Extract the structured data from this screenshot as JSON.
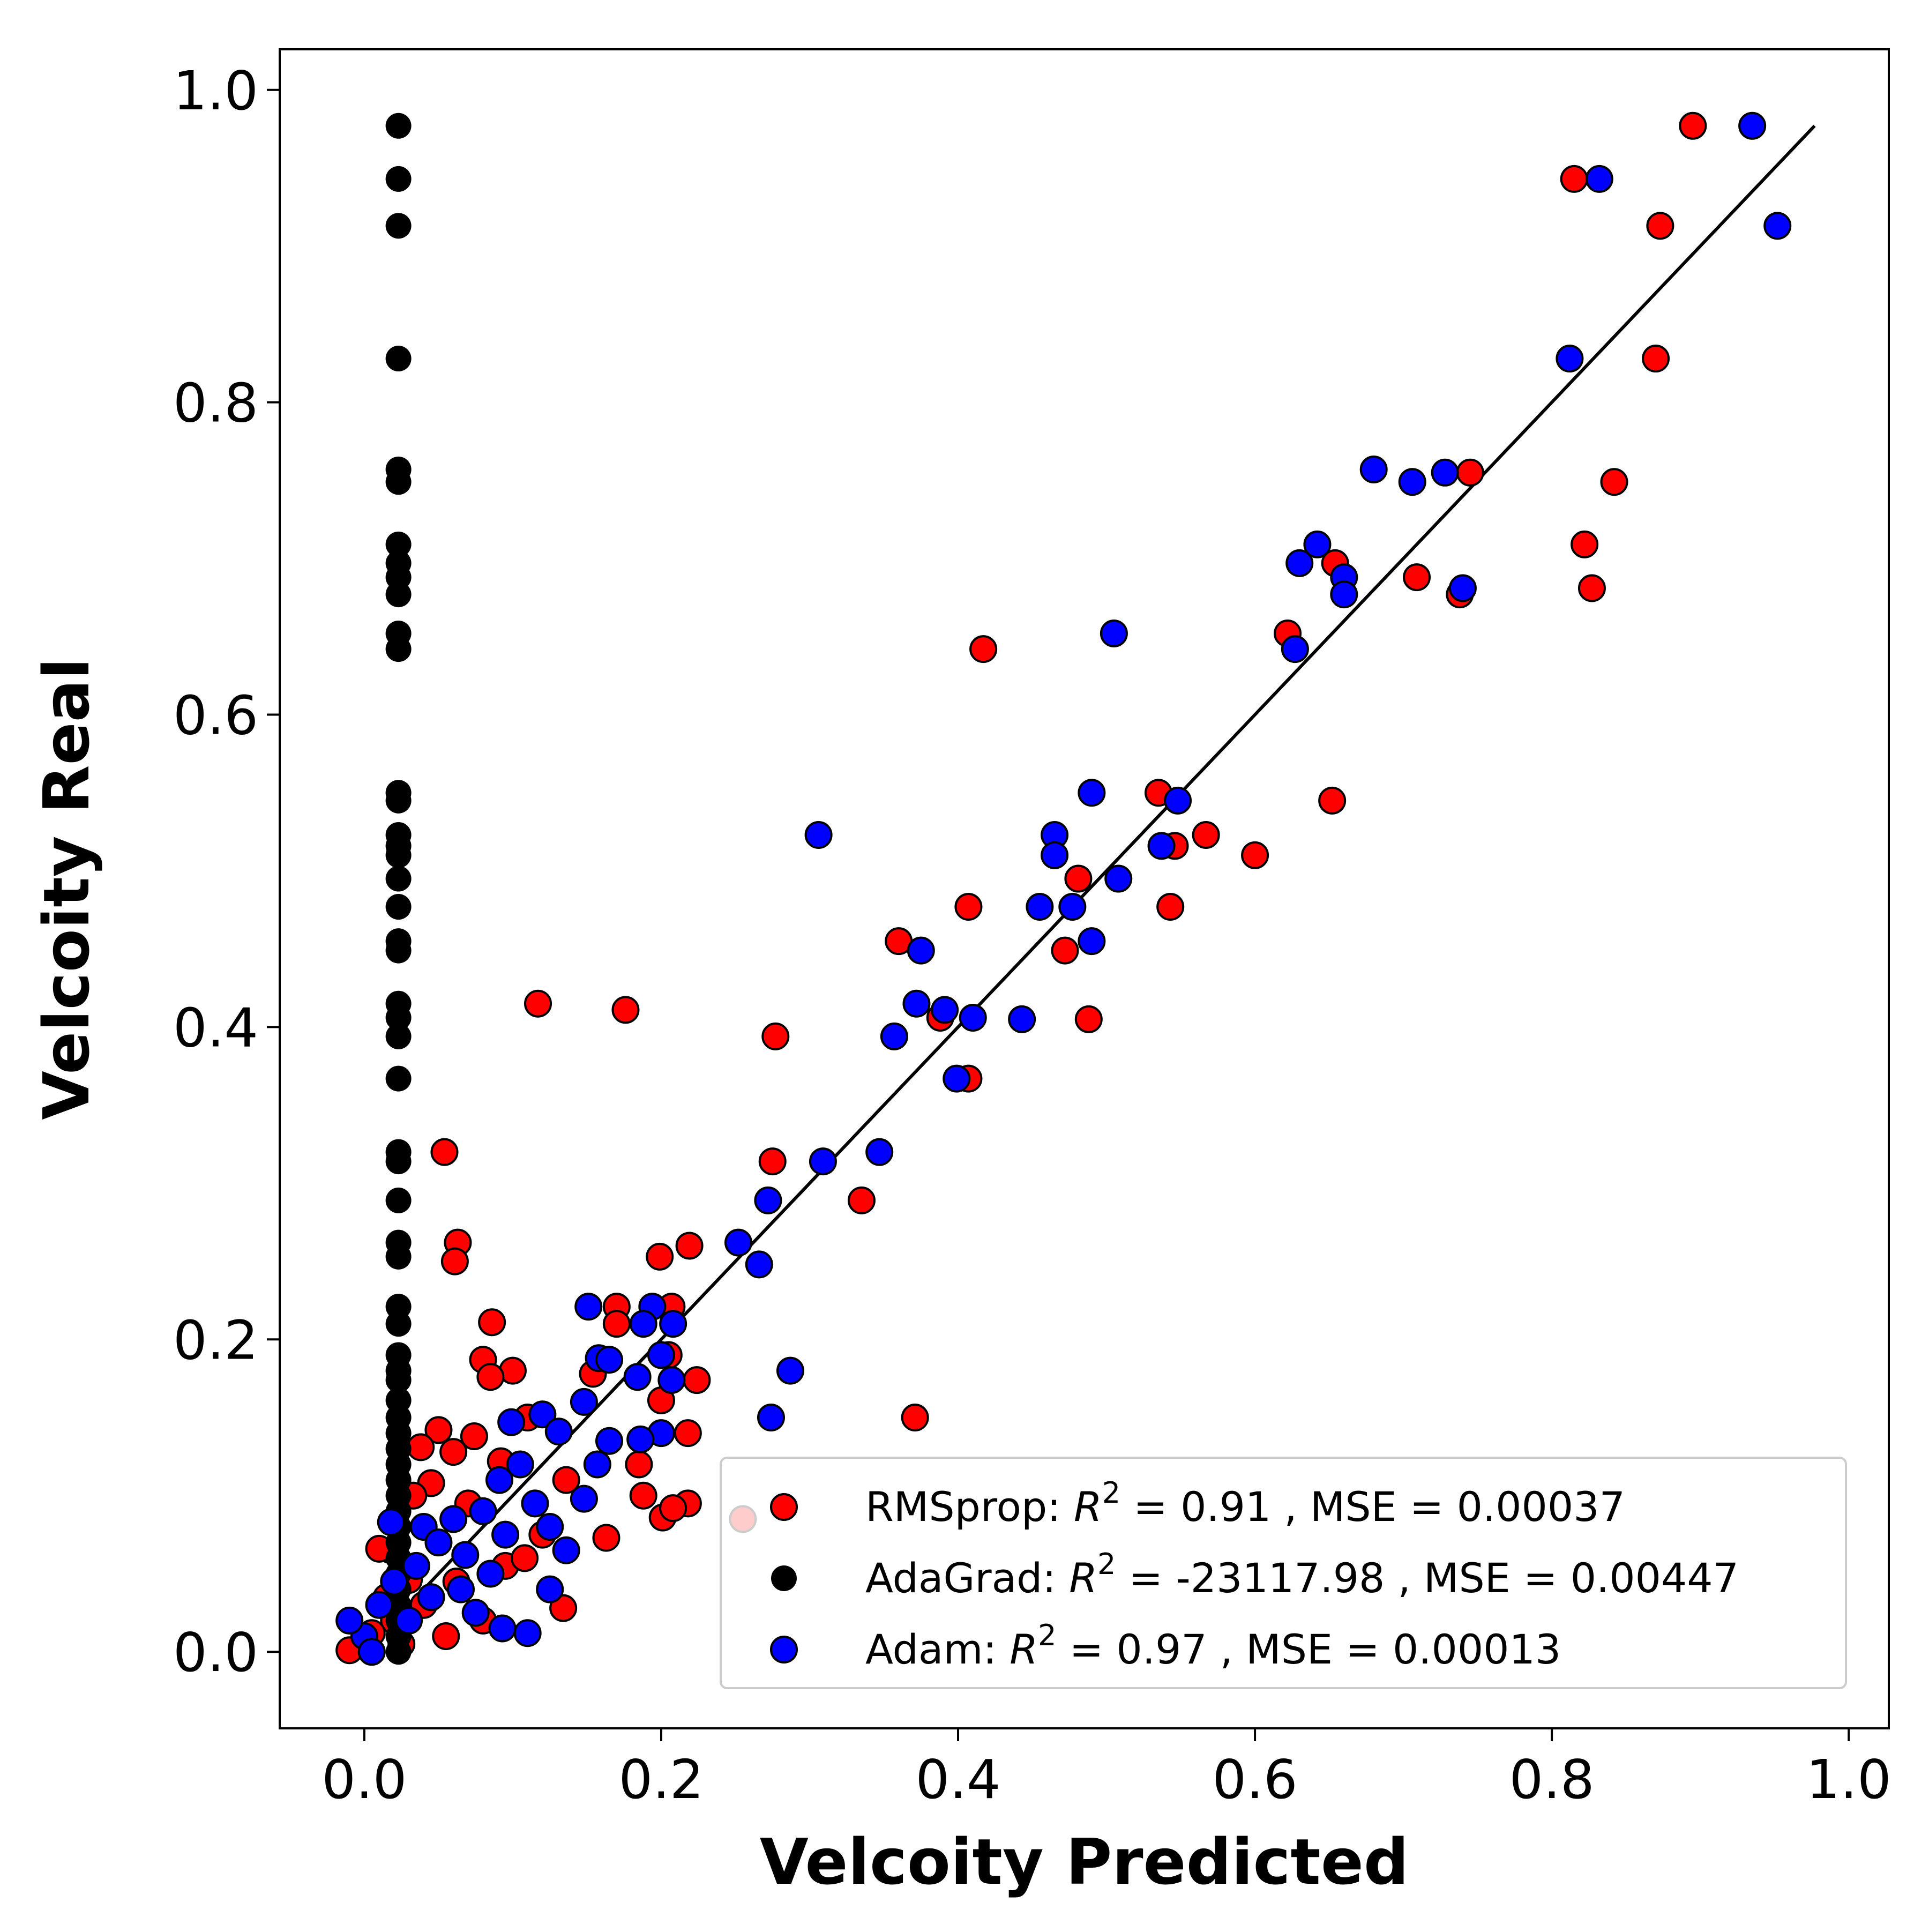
{
  "chart_data": {
    "type": "scatter",
    "title": "",
    "xlabel": "Velcoity Predicted",
    "ylabel": "Velcoity Real",
    "xlim": [
      -0.057,
      1.027
    ],
    "ylim": [
      -0.049,
      1.026
    ],
    "x_ticks": [
      "0.0",
      "0.2",
      "0.4",
      "0.6",
      "0.8",
      "1.0"
    ],
    "x_tick_values": [
      0.0,
      0.2,
      0.4,
      0.6,
      0.8,
      1.0
    ],
    "y_ticks": [
      "0.0",
      "0.2",
      "0.4",
      "0.6",
      "0.8",
      "1.0"
    ],
    "y_tick_values": [
      0.0,
      0.2,
      0.4,
      0.6,
      0.8,
      1.0
    ],
    "grid": false,
    "legend_position": "bottom-right",
    "reference_line": {
      "from": [
        0.0,
        0.0
      ],
      "to": [
        0.977,
        0.977
      ],
      "color": "#000000"
    },
    "series": [
      {
        "name": "RMSprop",
        "legend_text": {
          "prefix": "RMSprop: ",
          "r2_symbol": "R",
          "r2_exp": "2",
          "suffix": " = 0.91 , MSE = 0.00037"
        },
        "color": "#ff0000",
        "points": [
          [
            0.895,
            0.977
          ],
          [
            0.815,
            0.943
          ],
          [
            0.873,
            0.913
          ],
          [
            0.87,
            0.828
          ],
          [
            0.745,
            0.755
          ],
          [
            0.842,
            0.749
          ],
          [
            0.822,
            0.709
          ],
          [
            0.827,
            0.681
          ],
          [
            0.654,
            0.697
          ],
          [
            0.709,
            0.688
          ],
          [
            0.738,
            0.677
          ],
          [
            0.622,
            0.652
          ],
          [
            0.417,
            0.642
          ],
          [
            0.652,
            0.545
          ],
          [
            0.535,
            0.55
          ],
          [
            0.567,
            0.523
          ],
          [
            0.546,
            0.516
          ],
          [
            0.6,
            0.51
          ],
          [
            0.481,
            0.495
          ],
          [
            0.407,
            0.477
          ],
          [
            0.543,
            0.477
          ],
          [
            0.36,
            0.455
          ],
          [
            0.472,
            0.449
          ],
          [
            0.117,
            0.415
          ],
          [
            0.176,
            0.411
          ],
          [
            0.388,
            0.406
          ],
          [
            0.488,
            0.405
          ],
          [
            0.277,
            0.394
          ],
          [
            0.407,
            0.367
          ],
          [
            0.275,
            0.314
          ],
          [
            0.054,
            0.32
          ],
          [
            0.335,
            0.289
          ],
          [
            0.063,
            0.262
          ],
          [
            0.219,
            0.26
          ],
          [
            0.061,
            0.25
          ],
          [
            0.199,
            0.253
          ],
          [
            0.17,
            0.221
          ],
          [
            0.207,
            0.221
          ],
          [
            0.086,
            0.211
          ],
          [
            0.17,
            0.21
          ],
          [
            0.08,
            0.187
          ],
          [
            0.205,
            0.19
          ],
          [
            0.1,
            0.18
          ],
          [
            0.085,
            0.176
          ],
          [
            0.224,
            0.174
          ],
          [
            0.154,
            0.178
          ],
          [
            0.371,
            0.15
          ],
          [
            0.218,
            0.14
          ],
          [
            0.2,
            0.161
          ],
          [
            0.185,
            0.12
          ],
          [
            0.188,
            0.1
          ],
          [
            0.201,
            0.086
          ],
          [
            0.218,
            0.095
          ],
          [
            0.208,
            0.092
          ],
          [
            0.163,
            0.073
          ],
          [
            0.255,
            0.085
          ],
          [
            0.05,
            0.142
          ],
          [
            0.038,
            0.131
          ],
          [
            0.06,
            0.128
          ],
          [
            0.074,
            0.138
          ],
          [
            0.045,
            0.108
          ],
          [
            0.11,
            0.15
          ],
          [
            0.092,
            0.122
          ],
          [
            0.136,
            0.11
          ],
          [
            0.07,
            0.095
          ],
          [
            0.033,
            0.1
          ],
          [
            0.12,
            0.075
          ],
          [
            0.095,
            0.055
          ],
          [
            0.134,
            0.028
          ],
          [
            0.055,
            0.01
          ],
          [
            0.08,
            0.02
          ],
          [
            0.03,
            0.046
          ],
          [
            0.018,
            0.065
          ],
          [
            0.01,
            0.066
          ],
          [
            0.04,
            0.03
          ],
          [
            0.062,
            0.045
          ],
          [
            0.108,
            0.06
          ],
          [
            0.02,
            0.02
          ],
          [
            -0.01,
            0.001
          ],
          [
            0.005,
            0.012
          ],
          [
            0.015,
            0.035
          ],
          [
            0.025,
            0.005
          ]
        ]
      },
      {
        "name": "AdaGrad",
        "legend_text": {
          "prefix": "AdaGrad: ",
          "r2_symbol": "R",
          "r2_exp": "2",
          "suffix": " = -23117.98 , MSE = 0.00447"
        },
        "color": "#000000",
        "points": [
          [
            0.023,
            0.977
          ],
          [
            0.023,
            0.943
          ],
          [
            0.023,
            0.913
          ],
          [
            0.023,
            0.828
          ],
          [
            0.023,
            0.757
          ],
          [
            0.023,
            0.749
          ],
          [
            0.023,
            0.709
          ],
          [
            0.023,
            0.697
          ],
          [
            0.023,
            0.688
          ],
          [
            0.023,
            0.677
          ],
          [
            0.023,
            0.652
          ],
          [
            0.023,
            0.642
          ],
          [
            0.023,
            0.55
          ],
          [
            0.023,
            0.545
          ],
          [
            0.023,
            0.523
          ],
          [
            0.023,
            0.516
          ],
          [
            0.023,
            0.51
          ],
          [
            0.023,
            0.495
          ],
          [
            0.023,
            0.477
          ],
          [
            0.023,
            0.455
          ],
          [
            0.023,
            0.449
          ],
          [
            0.023,
            0.415
          ],
          [
            0.023,
            0.406
          ],
          [
            0.023,
            0.394
          ],
          [
            0.023,
            0.367
          ],
          [
            0.023,
            0.32
          ],
          [
            0.023,
            0.314
          ],
          [
            0.023,
            0.289
          ],
          [
            0.023,
            0.262
          ],
          [
            0.023,
            0.253
          ],
          [
            0.023,
            0.221
          ],
          [
            0.023,
            0.21
          ],
          [
            0.023,
            0.19
          ],
          [
            0.023,
            0.18
          ],
          [
            0.023,
            0.174
          ],
          [
            0.023,
            0.161
          ],
          [
            0.023,
            0.15
          ],
          [
            0.023,
            0.14
          ],
          [
            0.023,
            0.13
          ],
          [
            0.023,
            0.12
          ],
          [
            0.023,
            0.11
          ],
          [
            0.023,
            0.1
          ],
          [
            0.023,
            0.09
          ],
          [
            0.023,
            0.08
          ],
          [
            0.023,
            0.07
          ],
          [
            0.023,
            0.06
          ],
          [
            0.023,
            0.05
          ],
          [
            0.023,
            0.04
          ],
          [
            0.023,
            0.03
          ],
          [
            0.023,
            0.02
          ],
          [
            0.023,
            0.01
          ],
          [
            0.023,
            0.0
          ]
        ]
      },
      {
        "name": "Adam",
        "legend_text": {
          "prefix": "Adam: ",
          "r2_symbol": "R",
          "r2_exp": "2",
          "suffix": " = 0.97 , MSE = 0.00013"
        },
        "color": "#0000ff",
        "points": [
          [
            0.935,
            0.977
          ],
          [
            0.832,
            0.943
          ],
          [
            0.952,
            0.913
          ],
          [
            0.812,
            0.828
          ],
          [
            0.68,
            0.757
          ],
          [
            0.728,
            0.755
          ],
          [
            0.706,
            0.749
          ],
          [
            0.642,
            0.709
          ],
          [
            0.63,
            0.697
          ],
          [
            0.66,
            0.688
          ],
          [
            0.74,
            0.681
          ],
          [
            0.66,
            0.677
          ],
          [
            0.505,
            0.652
          ],
          [
            0.627,
            0.642
          ],
          [
            0.49,
            0.55
          ],
          [
            0.548,
            0.545
          ],
          [
            0.306,
            0.523
          ],
          [
            0.465,
            0.523
          ],
          [
            0.537,
            0.516
          ],
          [
            0.465,
            0.51
          ],
          [
            0.508,
            0.495
          ],
          [
            0.455,
            0.477
          ],
          [
            0.477,
            0.477
          ],
          [
            0.375,
            0.449
          ],
          [
            0.49,
            0.455
          ],
          [
            0.372,
            0.415
          ],
          [
            0.391,
            0.411
          ],
          [
            0.41,
            0.406
          ],
          [
            0.443,
            0.405
          ],
          [
            0.357,
            0.394
          ],
          [
            0.399,
            0.367
          ],
          [
            0.347,
            0.32
          ],
          [
            0.309,
            0.314
          ],
          [
            0.272,
            0.289
          ],
          [
            0.252,
            0.262
          ],
          [
            0.266,
            0.248
          ],
          [
            0.151,
            0.221
          ],
          [
            0.194,
            0.221
          ],
          [
            0.208,
            0.21
          ],
          [
            0.188,
            0.21
          ],
          [
            0.158,
            0.188
          ],
          [
            0.2,
            0.19
          ],
          [
            0.165,
            0.187
          ],
          [
            0.287,
            0.18
          ],
          [
            0.184,
            0.176
          ],
          [
            0.207,
            0.174
          ],
          [
            0.274,
            0.15
          ],
          [
            0.2,
            0.14
          ],
          [
            0.186,
            0.136
          ],
          [
            0.165,
            0.135
          ],
          [
            0.148,
            0.16
          ],
          [
            0.099,
            0.147
          ],
          [
            0.12,
            0.152
          ],
          [
            0.131,
            0.141
          ],
          [
            0.157,
            0.12
          ],
          [
            0.148,
            0.098
          ],
          [
            0.136,
            0.065
          ],
          [
            0.125,
            0.04
          ],
          [
            0.11,
            0.012
          ],
          [
            0.093,
            0.015
          ],
          [
            0.068,
            0.062
          ],
          [
            0.08,
            0.09
          ],
          [
            0.091,
            0.11
          ],
          [
            0.105,
            0.12
          ],
          [
            0.06,
            0.085
          ],
          [
            0.04,
            0.08
          ],
          [
            0.018,
            0.083
          ],
          [
            0.035,
            0.055
          ],
          [
            0.05,
            0.07
          ],
          [
            0.02,
            0.045
          ],
          [
            0.01,
            0.03
          ],
          [
            0.0,
            0.01
          ],
          [
            -0.01,
            0.02
          ],
          [
            0.005,
            0.0
          ],
          [
            0.03,
            0.02
          ],
          [
            0.045,
            0.035
          ],
          [
            0.065,
            0.04
          ],
          [
            0.085,
            0.05
          ],
          [
            0.075,
            0.025
          ],
          [
            0.095,
            0.075
          ],
          [
            0.115,
            0.095
          ],
          [
            0.125,
            0.08
          ]
        ]
      }
    ]
  }
}
